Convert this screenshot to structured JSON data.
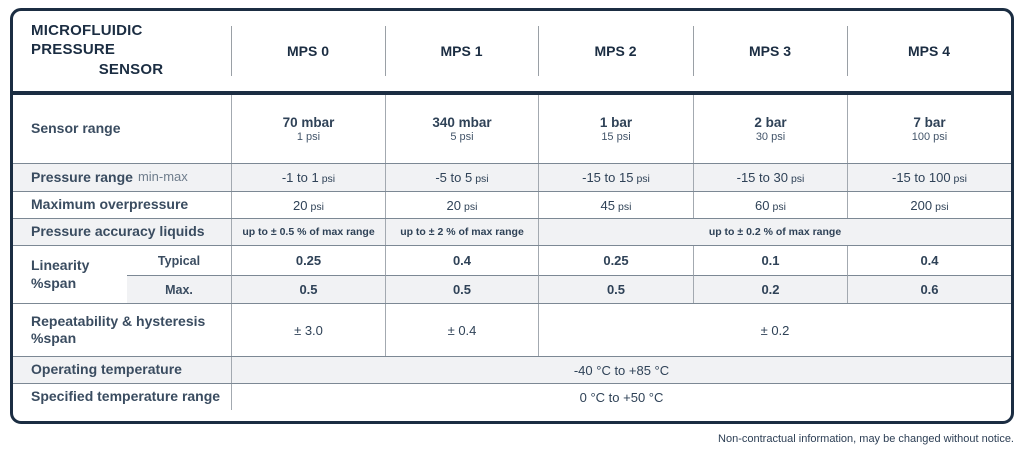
{
  "colors": {
    "brand_navy": "#1b2d42",
    "row_shade": "#f1f2f4"
  },
  "title": {
    "line1": "Microfluidic pressure",
    "line2": "sensor"
  },
  "columns": [
    "MPS 0",
    "MPS 1",
    "MPS 2",
    "MPS 3",
    "MPS 4"
  ],
  "sensor_range": {
    "label": "Sensor range",
    "cells": [
      {
        "main": "70 mbar",
        "sub": "1 psi"
      },
      {
        "main": "340 mbar",
        "sub": "5 psi"
      },
      {
        "main": "1 bar",
        "sub": "15 psi"
      },
      {
        "main": "2 bar",
        "sub": "30 psi"
      },
      {
        "main": "7 bar",
        "sub": "100 psi"
      }
    ]
  },
  "pressure_range": {
    "label": "Pressure range",
    "label_note": "min-max",
    "cells": [
      {
        "value": "-1 to 1",
        "unit": "psi"
      },
      {
        "value": "-5 to 5",
        "unit": "psi"
      },
      {
        "value": "-15 to 15",
        "unit": "psi"
      },
      {
        "value": "-15 to 30",
        "unit": "psi"
      },
      {
        "value": "-15 to 100",
        "unit": "psi"
      }
    ]
  },
  "maximum_overpressure": {
    "label": "Maximum overpressure",
    "cells": [
      {
        "value": "20",
        "unit": "psi"
      },
      {
        "value": "20",
        "unit": "psi"
      },
      {
        "value": "45",
        "unit": "psi"
      },
      {
        "value": "60",
        "unit": "psi"
      },
      {
        "value": "200",
        "unit": "psi"
      }
    ]
  },
  "pressure_accuracy": {
    "label": "Pressure accuracy liquids",
    "mps0": "up to ± 0.5 % of max range",
    "mps1": "up to ± 2 % of max range",
    "mps2_4": "up to ± 0.2 % of max range"
  },
  "linearity": {
    "label_line1": "Linearity",
    "label_line2": "%span",
    "typical_label": "Typical",
    "max_label": "Max.",
    "typical": [
      "0.25",
      "0.4",
      "0.25",
      "0.1",
      "0.4"
    ],
    "max": [
      "0.5",
      "0.5",
      "0.5",
      "0.2",
      "0.6"
    ]
  },
  "repeatability": {
    "label_line1": "Repeatability & hysteresis",
    "label_line2": "%span",
    "mps0": "± 3.0",
    "mps1": "± 0.4",
    "mps2_4": "± 0.2"
  },
  "operating_temperature": {
    "label": "Operating temperature",
    "value": "-40 °C to +85 °C"
  },
  "specified_temperature": {
    "label": "Specified temperature range",
    "value": "0 °C to +50 °C"
  },
  "footer_note": "Non-contractual information, may be changed without notice."
}
